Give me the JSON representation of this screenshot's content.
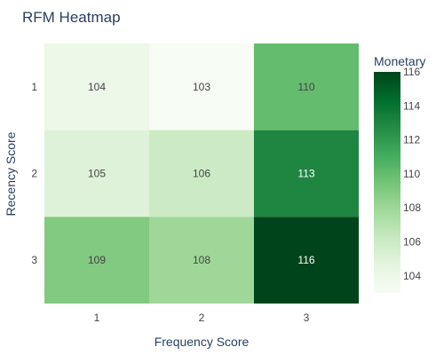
{
  "chart_data": {
    "type": "heatmap",
    "title": "RFM Heatmap",
    "xlabel": "Frequency Score",
    "ylabel": "Recency Score",
    "x_categories": [
      "1",
      "2",
      "3"
    ],
    "y_categories": [
      "1",
      "2",
      "3"
    ],
    "values": [
      [
        104,
        103,
        110
      ],
      [
        105,
        106,
        113
      ],
      [
        109,
        108,
        116
      ]
    ],
    "colorbar": {
      "title": "Monetary",
      "min": 103,
      "max": 116,
      "ticks": [
        "104",
        "106",
        "108",
        "110",
        "112",
        "114",
        "116"
      ],
      "colorscale": [
        "#f7fcf5",
        "#e5f5e0",
        "#c7e9c0",
        "#a1d99b",
        "#74c476",
        "#41ab5d",
        "#238b45",
        "#006d2c",
        "#00441b"
      ]
    }
  }
}
